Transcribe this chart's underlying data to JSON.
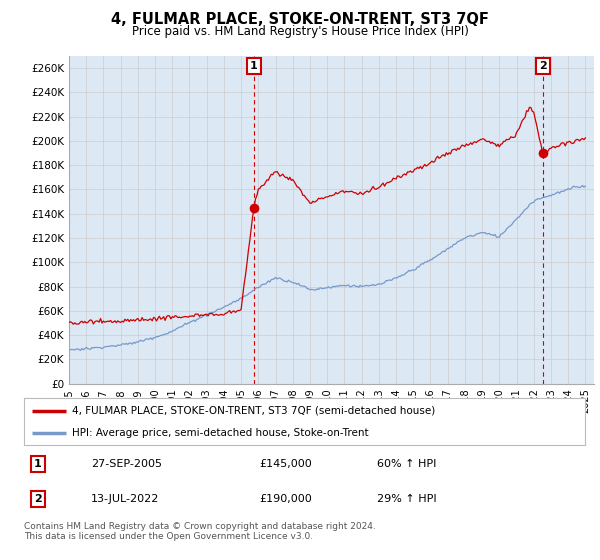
{
  "title": "4, FULMAR PLACE, STOKE-ON-TRENT, ST3 7QF",
  "subtitle": "Price paid vs. HM Land Registry's House Price Index (HPI)",
  "ylabel_ticks": [
    "£0",
    "£20K",
    "£40K",
    "£60K",
    "£80K",
    "£100K",
    "£120K",
    "£140K",
    "£160K",
    "£180K",
    "£200K",
    "£220K",
    "£240K",
    "£260K"
  ],
  "ytick_values": [
    0,
    20000,
    40000,
    60000,
    80000,
    100000,
    120000,
    140000,
    160000,
    180000,
    200000,
    220000,
    240000,
    260000
  ],
  "ylim": [
    0,
    270000
  ],
  "xlim_start": 1995.0,
  "xlim_end": 2025.5,
  "purchase1_x": 2005.74,
  "purchase1_y": 145000,
  "purchase2_x": 2022.53,
  "purchase2_y": 190000,
  "line1_color": "#cc0000",
  "line2_color": "#7799cc",
  "grid_color": "#cccccc",
  "chart_bg_color": "#dde8f5",
  "background_color": "#ffffff",
  "legend_label1": "4, FULMAR PLACE, STOKE-ON-TRENT, ST3 7QF (semi-detached house)",
  "legend_label2": "HPI: Average price, semi-detached house, Stoke-on-Trent",
  "annot1_label": "1",
  "annot2_label": "2",
  "annot1_date": "27-SEP-2005",
  "annot1_price": "£145,000",
  "annot1_hpi": "60% ↑ HPI",
  "annot2_date": "13-JUL-2022",
  "annot2_price": "£190,000",
  "annot2_hpi": "29% ↑ HPI",
  "footer": "Contains HM Land Registry data © Crown copyright and database right 2024.\nThis data is licensed under the Open Government Licence v3.0.",
  "xtick_years": [
    1995,
    1996,
    1997,
    1998,
    1999,
    2000,
    2001,
    2002,
    2003,
    2004,
    2005,
    2006,
    2007,
    2008,
    2009,
    2010,
    2011,
    2012,
    2013,
    2014,
    2015,
    2016,
    2017,
    2018,
    2019,
    2020,
    2021,
    2022,
    2023,
    2024,
    2025
  ]
}
